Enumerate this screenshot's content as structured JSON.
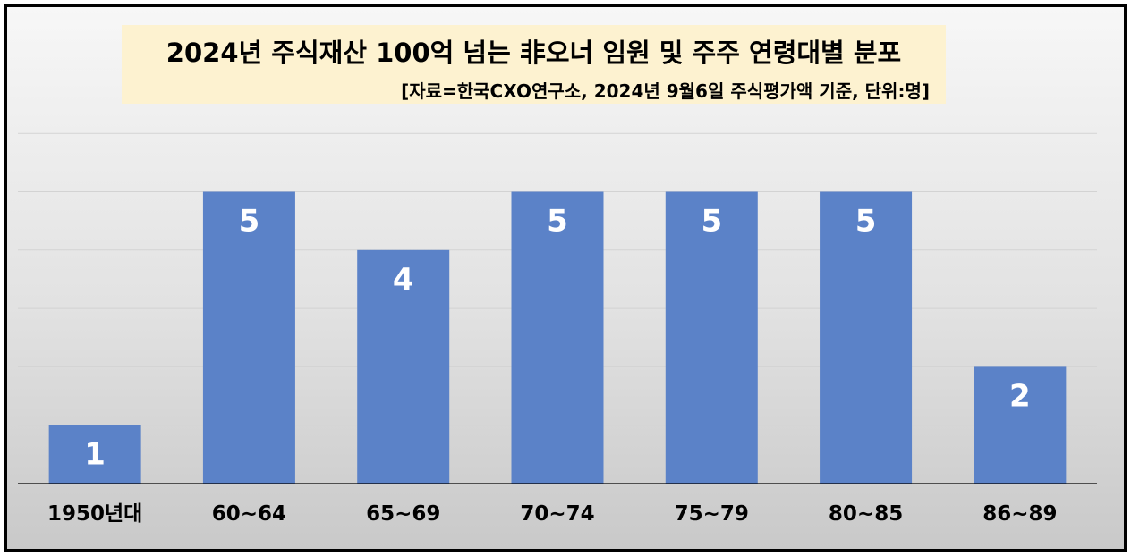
{
  "chart_data": {
    "type": "bar",
    "title": "2024년 주식재산 100억 넘는 非오너 임원 및 주주 연령대별 분포",
    "subtitle": "[자료=한국CXO연구소, 2024년 9월6일 주식평가액 기준, 단위:명]",
    "categories": [
      "1950년대",
      "60~64",
      "65~69",
      "70~74",
      "75~79",
      "80~85",
      "86~89"
    ],
    "values": [
      1,
      5,
      4,
      5,
      5,
      5,
      2
    ],
    "ylim": [
      0,
      6
    ],
    "grid": true,
    "data_labels": true,
    "bar_color": "#5b82c8",
    "xlabel": "",
    "ylabel": ""
  }
}
